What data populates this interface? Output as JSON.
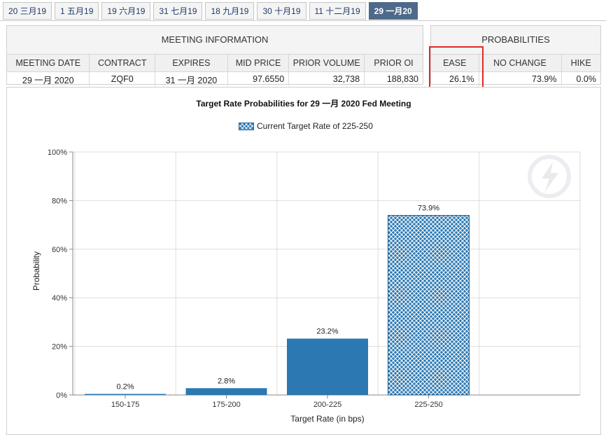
{
  "tabs": [
    {
      "label": "20 三月19",
      "active": false
    },
    {
      "label": "1 五月19",
      "active": false
    },
    {
      "label": "19 六月19",
      "active": false
    },
    {
      "label": "31 七月19",
      "active": false
    },
    {
      "label": "18 九月19",
      "active": false
    },
    {
      "label": "30 十月19",
      "active": false
    },
    {
      "label": "11 十二月19",
      "active": false
    },
    {
      "label": "29 一月20",
      "active": true
    }
  ],
  "meeting_info": {
    "header": "MEETING INFORMATION",
    "columns": [
      "MEETING DATE",
      "CONTRACT",
      "EXPIRES",
      "MID PRICE",
      "PRIOR VOLUME",
      "PRIOR OI"
    ],
    "row": [
      "29 一月 2020",
      "ZQF0",
      "31 一月 2020",
      "97.6550",
      "32,738",
      "188,830"
    ]
  },
  "probabilities": {
    "header": "PROBABILITIES",
    "columns": [
      "EASE",
      "NO CHANGE",
      "HIKE"
    ],
    "row": [
      "26.1%",
      "73.9%",
      "0.0%"
    ]
  },
  "colors": {
    "bar": "#2b78b2",
    "highlight": "#e32828",
    "active_tab": "#4e6a8a"
  },
  "chart_data": {
    "type": "bar",
    "title": "Target Rate Probabilities for 29 一月  2020  Fed Meeting",
    "legend": "Current Target Rate of 225-250",
    "xlabel": "Target Rate (in bps)",
    "ylabel": "Probability",
    "categories": [
      "150-175",
      "175-200",
      "200-225",
      "225-250"
    ],
    "values": [
      0.2,
      2.8,
      23.2,
      73.9
    ],
    "value_labels": [
      "0.2%",
      "2.8%",
      "23.2%",
      "73.9%"
    ],
    "current_category": "225-250",
    "ylim": [
      0,
      100
    ],
    "yticks": [
      "0%",
      "20%",
      "40%",
      "60%",
      "80%",
      "100%"
    ],
    "grid": true
  }
}
